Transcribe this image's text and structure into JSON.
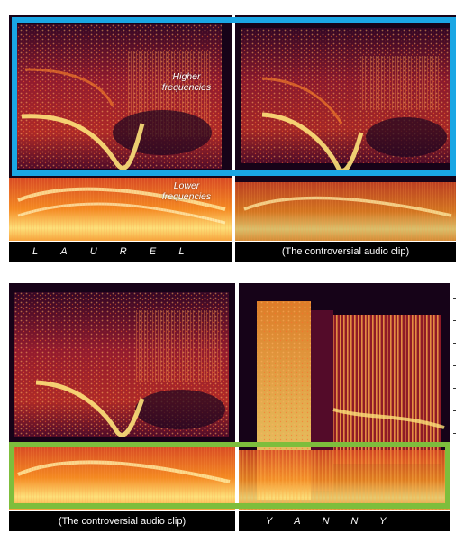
{
  "top_row": {
    "left_panel": {
      "letters": [
        "L",
        "A",
        "U",
        "R",
        "E",
        "L"
      ]
    },
    "right_panel": {
      "caption": "(The controversial audio clip)"
    },
    "labels": {
      "higher": "Higher frequencies",
      "lower": "Lower frequencies"
    },
    "highlight_color": "#1aa6e4"
  },
  "bottom_row": {
    "left_panel": {
      "caption": "(The controversial audio clip)"
    },
    "right_panel": {
      "letters": [
        "Y",
        "A",
        "N",
        "N",
        "Y"
      ]
    },
    "highlight_color": "#7dbe3c"
  },
  "spectrogram_colors": {
    "background": "#160318",
    "low": "#4a0a2c",
    "mid": "#b8242c",
    "high": "#ef6a1e",
    "peak": "#fde27a"
  }
}
